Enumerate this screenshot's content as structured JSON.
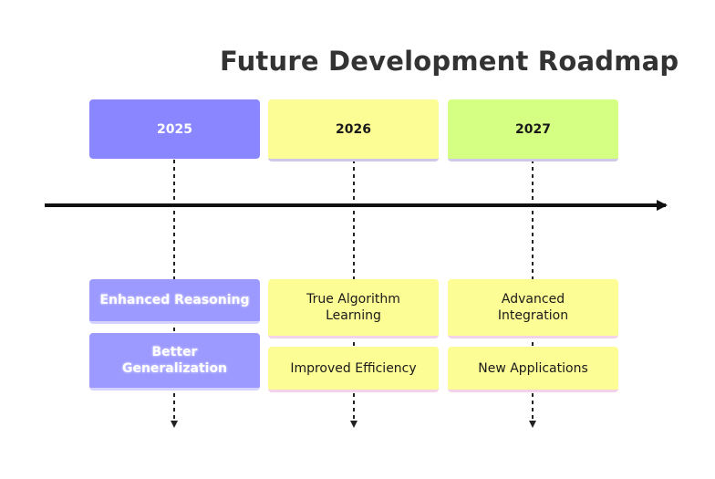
{
  "title": "Future Development Roadmap",
  "periods": [
    {
      "label": "2025",
      "events": [
        "Enhanced Reasoning",
        "Better Generalization"
      ]
    },
    {
      "label": "2026",
      "events": [
        "True Algorithm Learning",
        "Improved Efficiency"
      ]
    },
    {
      "label": "2027",
      "events": [
        "Advanced Integration",
        "New Applications"
      ]
    }
  ],
  "colors": {
    "period_2025": "#8a86ff",
    "period_2026": "#fdfd96",
    "period_2027": "#d5ff82",
    "axis": "#111111"
  }
}
